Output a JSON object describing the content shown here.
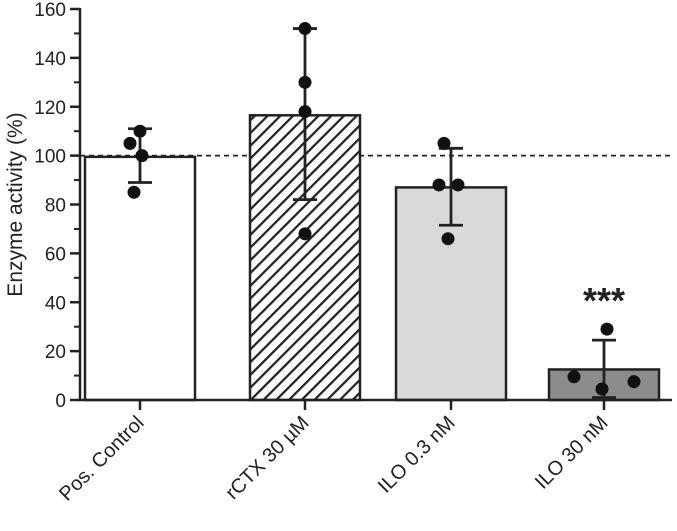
{
  "chart_data": {
    "type": "bar",
    "title": "",
    "xlabel": "",
    "ylabel": "Enzyme activity (%)",
    "ylim": [
      0,
      160
    ],
    "yticks": [
      0,
      20,
      40,
      60,
      80,
      100,
      120,
      140,
      160
    ],
    "reference_line": 100,
    "grid": false,
    "legend": "none",
    "categories": [
      "Pos. Control",
      "rCTX 30 µM",
      "ILO 0.3 nM",
      "ILO 30 nM"
    ],
    "values": [
      99.5,
      116.5,
      87,
      12.5
    ],
    "error_high": [
      111,
      152,
      103,
      24.5
    ],
    "error_low": [
      89,
      82,
      71.5,
      1
    ],
    "points": [
      [
        110,
        105,
        100,
        85
      ],
      [
        152,
        130,
        118,
        68
      ],
      [
        105,
        88,
        88,
        66
      ],
      [
        29,
        9.5,
        7.5,
        4.5
      ]
    ],
    "fills": [
      "#ffffff",
      "hatch",
      "#d9d9d9",
      "#8c8c8c"
    ],
    "annotations": [
      {
        "category": "ILO 30 nM",
        "text": "***"
      }
    ]
  }
}
